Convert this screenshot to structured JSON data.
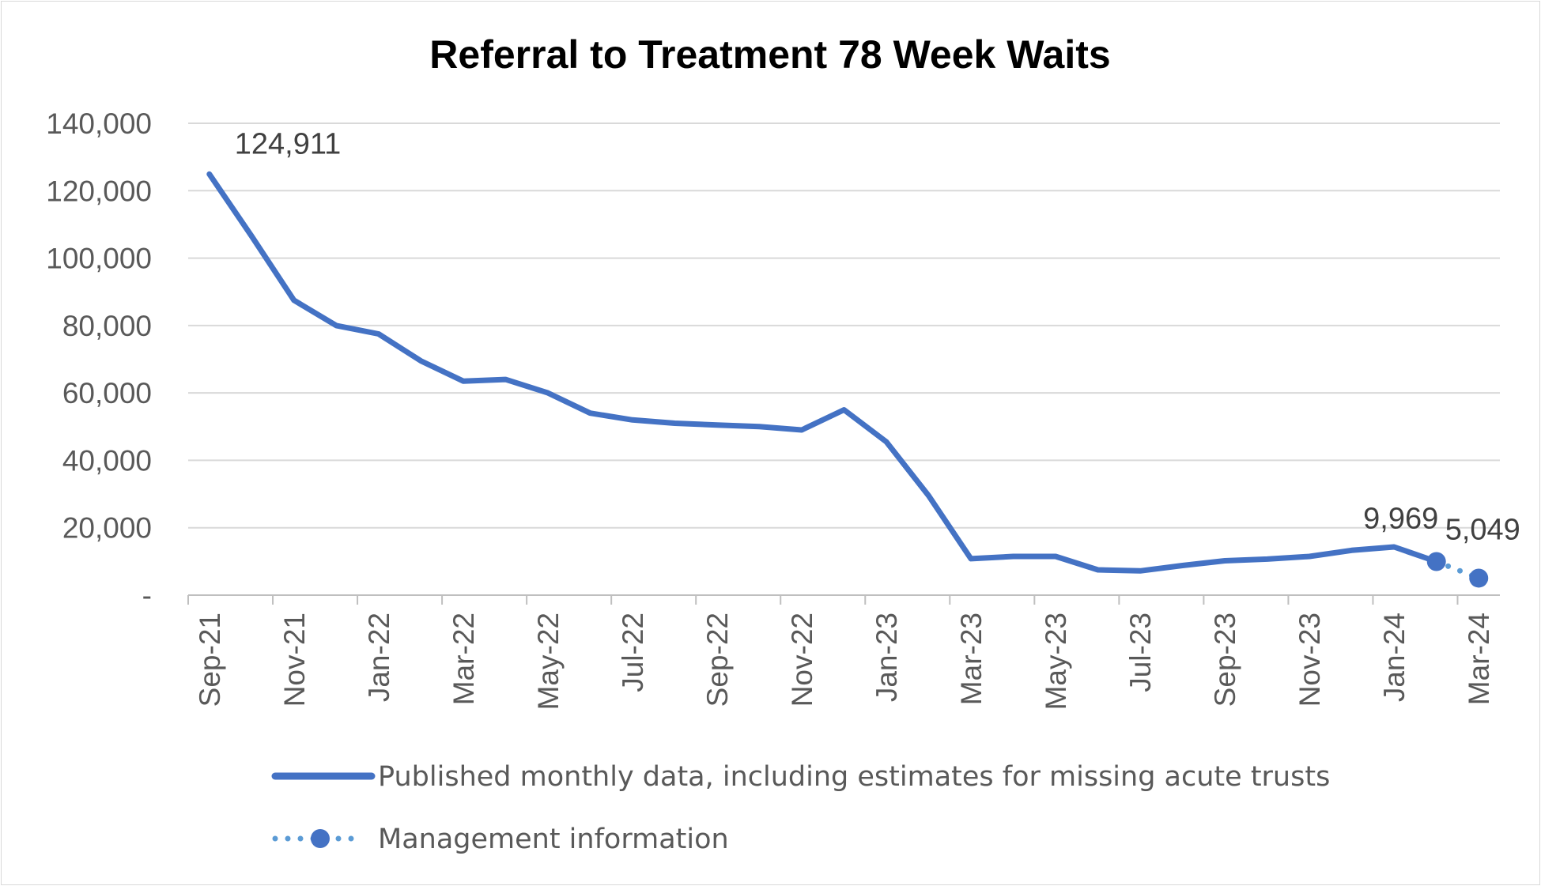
{
  "chart_data": {
    "type": "line",
    "title": "Referral to Treatment 78 Week Waits",
    "xlabel": "",
    "ylabel": "",
    "ylim": [
      0,
      140000
    ],
    "y_ticks": [
      {
        "value": 0,
        "label": "-"
      },
      {
        "value": 20000,
        "label": "20,000"
      },
      {
        "value": 40000,
        "label": "40,000"
      },
      {
        "value": 60000,
        "label": "60,000"
      },
      {
        "value": 80000,
        "label": "80,000"
      },
      {
        "value": 100000,
        "label": "100,000"
      },
      {
        "value": 120000,
        "label": "120,000"
      },
      {
        "value": 140000,
        "label": "140,000"
      }
    ],
    "categories": [
      "Sep-21",
      "Oct-21",
      "Nov-21",
      "Dec-21",
      "Jan-22",
      "Feb-22",
      "Mar-22",
      "Apr-22",
      "May-22",
      "Jun-22",
      "Jul-22",
      "Aug-22",
      "Sep-22",
      "Oct-22",
      "Nov-22",
      "Dec-22",
      "Jan-23",
      "Feb-23",
      "Mar-23",
      "Apr-23",
      "May-23",
      "Jun-23",
      "Jul-23",
      "Aug-23",
      "Sep-23",
      "Oct-23",
      "Nov-23",
      "Dec-23",
      "Jan-24",
      "Feb-24",
      "Mar-24"
    ],
    "x_tick_labels": [
      "Sep-21",
      "Nov-21",
      "Jan-22",
      "Mar-22",
      "May-22",
      "Jul-22",
      "Sep-22",
      "Nov-22",
      "Jan-23",
      "Mar-23",
      "May-23",
      "Jul-23",
      "Sep-23",
      "Nov-23",
      "Jan-24",
      "Mar-24"
    ],
    "grid": true,
    "legend_position": "bottom",
    "series": [
      {
        "name": "Published monthly data, including estimates for missing acute trusts",
        "style": "solid",
        "color": "#4472c4",
        "values": [
          124911,
          106500,
          87500,
          80000,
          77500,
          69500,
          63500,
          64000,
          60000,
          54000,
          52000,
          51000,
          50500,
          50000,
          49000,
          55000,
          45500,
          29500,
          10800,
          11500,
          11500,
          7500,
          7200,
          8800,
          10200,
          10700,
          11500,
          13300,
          14300,
          9969,
          null
        ]
      },
      {
        "name": "Management information",
        "style": "dotted",
        "color": "#5b9bd5",
        "values": [
          null,
          null,
          null,
          null,
          null,
          null,
          null,
          null,
          null,
          null,
          null,
          null,
          null,
          null,
          null,
          null,
          null,
          null,
          null,
          null,
          null,
          null,
          null,
          null,
          null,
          null,
          null,
          null,
          null,
          9969,
          5049
        ]
      }
    ],
    "data_labels": [
      {
        "category": "Sep-21",
        "value": 124911,
        "text": "124,911"
      },
      {
        "category": "Feb-24",
        "value": 9969,
        "text": "9,969"
      },
      {
        "category": "Mar-24",
        "value": 5049,
        "text": "5,049"
      }
    ]
  }
}
